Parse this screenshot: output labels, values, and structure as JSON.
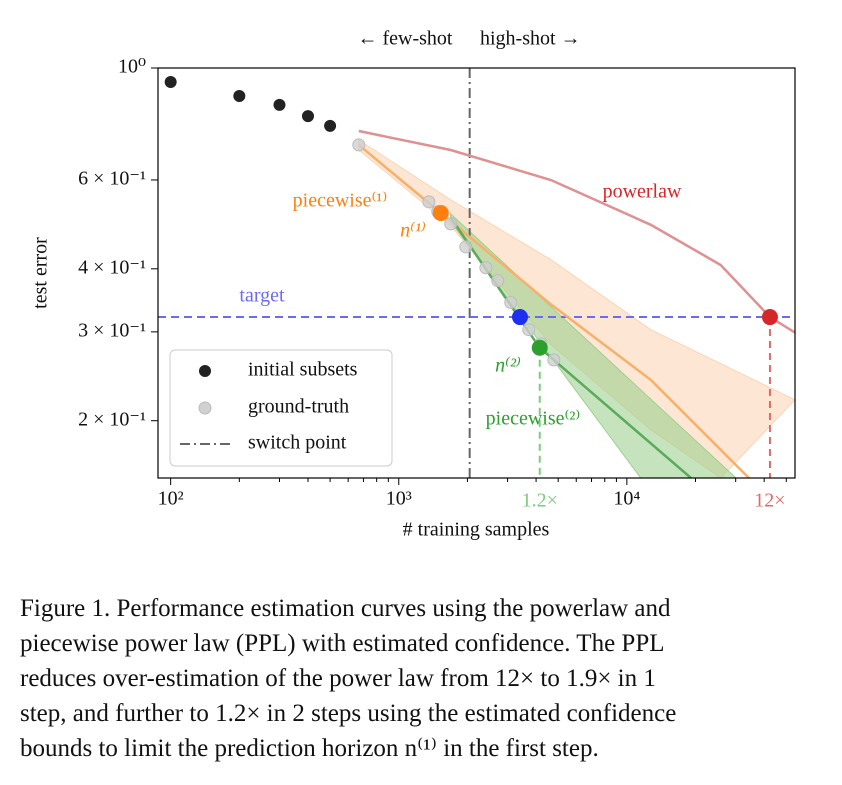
{
  "chart_data": {
    "type": "scatter",
    "header_left": "← few-shot",
    "header_right": "high-shot →",
    "xlabel": "# training samples",
    "ylabel": "test error",
    "log_x": true,
    "log_y": true,
    "xlim": [
      88,
      54600
    ],
    "ylim": [
      0.154,
      1.0
    ],
    "xticks": [
      {
        "value": 100,
        "label": "10²"
      },
      {
        "value": 1000,
        "label": "10³"
      },
      {
        "value": 10000,
        "label": "10⁴"
      }
    ],
    "xticks_minor": [
      200,
      300,
      400,
      500,
      600,
      700,
      800,
      900,
      2000,
      3000,
      4000,
      5000,
      6000,
      7000,
      8000,
      9000,
      20000,
      30000,
      40000,
      50000
    ],
    "yticks": [
      {
        "value": 1.0,
        "label": "10⁰"
      },
      {
        "value": 0.6,
        "label": "6 × 10⁻¹"
      },
      {
        "value": 0.4,
        "label": "4 × 10⁻¹"
      },
      {
        "value": 0.3,
        "label": "3 × 10⁻¹"
      },
      {
        "value": 0.2,
        "label": "2 × 10⁻¹"
      }
    ],
    "series": [
      {
        "name": "initial subsets",
        "color": "#222222",
        "x": [
          100,
          200,
          300,
          400,
          500
        ],
        "values": [
          0.938,
          0.88,
          0.845,
          0.803,
          0.768
        ]
      },
      {
        "name": "ground-truth",
        "color": "#d0d0d0",
        "x": [
          668,
          1355,
          1483,
          1690,
          1967,
          2409,
          2716,
          3097,
          3715,
          4197,
          4783
        ],
        "values": [
          0.704,
          0.543,
          0.519,
          0.491,
          0.442,
          0.402,
          0.379,
          0.343,
          0.303,
          0.284,
          0.264
        ]
      }
    ],
    "switch_point": {
      "name": "switch point",
      "x": 2046,
      "color": "#666666"
    },
    "target": {
      "label": "target",
      "value": 0.321,
      "color": "#6b6bf0"
    },
    "bands": [
      {
        "color": "#fbd5b5",
        "upper_x": [
          668,
          1690,
          4645,
          12740,
          54600
        ],
        "upper": [
          0.72,
          0.548,
          0.417,
          0.303,
          0.22
        ],
        "lower_x": [
          668,
          1690,
          4645,
          12740,
          25800
        ],
        "lower": [
          0.688,
          0.487,
          0.283,
          0.192,
          0.154
        ]
      },
      {
        "color": "#9fd08f",
        "upper_x": [
          1690,
          30100
        ],
        "upper": [
          0.514,
          0.154
        ],
        "lower_x": [
          1690,
          11500
        ],
        "lower": [
          0.496,
          0.154
        ]
      }
    ],
    "curves": [
      {
        "label": "powerlaw",
        "color": "#e09090",
        "x": [
          668,
          1690,
          4645,
          12740,
          25800,
          42400,
          54600
        ],
        "values": [
          0.75,
          0.688,
          0.6,
          0.489,
          0.407,
          0.321,
          0.299
        ]
      },
      {
        "label": "piecewise⁽¹⁾",
        "color": "#f7b06a",
        "x": [
          668,
          1528,
          4645,
          12740,
          34300
        ],
        "values": [
          0.704,
          0.516,
          0.34,
          0.241,
          0.154
        ]
      },
      {
        "label": "piecewise⁽²⁾",
        "color": "#5cab5c",
        "x": [
          1690,
          4150,
          19100
        ],
        "values": [
          0.505,
          0.279,
          0.154
        ]
      }
    ],
    "vmarks": [
      {
        "label": "1.2×",
        "color": "#7ccc7c",
        "x": 4150,
        "value": 0.279
      },
      {
        "label": "12×",
        "color": "#e06a6a",
        "x": 42400,
        "value": 0.321
      }
    ],
    "points": [
      {
        "label": "n⁽¹⁾",
        "color": "#ff7f0e",
        "x": 1528,
        "value": 0.516
      },
      {
        "color": "#1f2ff0",
        "x": 3400,
        "value": 0.321
      },
      {
        "label": "n⁽²⁾",
        "color": "#2ca02c",
        "x": 4150,
        "value": 0.279
      },
      {
        "color": "#d62728",
        "x": 42400,
        "value": 0.321
      }
    ]
  },
  "caption": {
    "lines": [
      "Figure 1. Performance estimation curves using the powerlaw and",
      "piecewise power law (PPL) with estimated confidence. The PPL",
      "reduces over-estimation of the power law from 12× to 1.9× in 1",
      "step, and further to 1.2× in 2 steps using the estimated confidence",
      "bounds to limit the prediction horizon n⁽¹⁾ in the first step."
    ]
  }
}
